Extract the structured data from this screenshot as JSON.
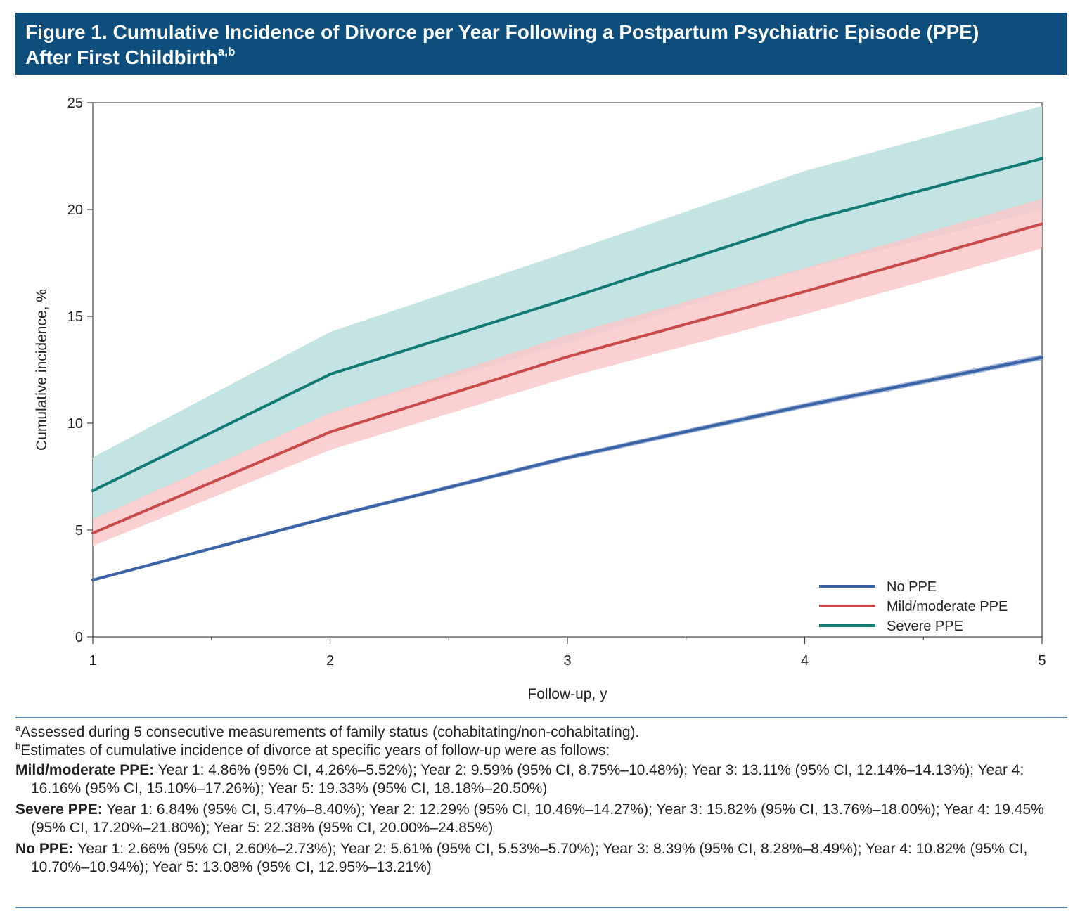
{
  "header": {
    "title_line1": "Figure 1. Cumulative Incidence of Divorce per Year Following a Postpartum Psychiatric Episode (PPE)",
    "title_line2": "After First Childbirth",
    "title_sup": "a,b"
  },
  "chart_data": {
    "type": "line",
    "xlabel": "Follow-up, y",
    "ylabel": "Cumulative incidence, %",
    "x": [
      1,
      2,
      3,
      4,
      5
    ],
    "xlim": [
      1,
      5
    ],
    "ylim": [
      0,
      25
    ],
    "yticks": [
      0,
      5,
      10,
      15,
      20,
      25
    ],
    "xticks": [
      1,
      2,
      3,
      4,
      5
    ],
    "grid": false,
    "legend_position": "bottom-right",
    "series": [
      {
        "name": "No PPE",
        "color": "#3a62a6",
        "band_color": "#9fb4d8",
        "values": [
          2.66,
          5.61,
          8.39,
          10.82,
          13.08
        ],
        "ci_low": [
          2.6,
          5.53,
          8.28,
          10.7,
          12.95
        ],
        "ci_high": [
          2.73,
          5.7,
          8.49,
          10.94,
          13.21
        ]
      },
      {
        "name": "Mild/moderate PPE",
        "color": "#c94a4a",
        "band_color": "#f9c8c8",
        "values": [
          4.86,
          9.59,
          13.11,
          16.16,
          19.33
        ],
        "ci_low": [
          4.26,
          8.75,
          12.14,
          15.1,
          18.18
        ],
        "ci_high": [
          5.52,
          10.48,
          14.13,
          17.26,
          20.5
        ]
      },
      {
        "name": "Severe PPE",
        "color": "#137a73",
        "band_color": "#c3e4e3",
        "values": [
          6.84,
          12.29,
          15.82,
          19.45,
          22.38
        ],
        "ci_low": [
          5.47,
          10.46,
          13.76,
          17.2,
          20.0
        ],
        "ci_high": [
          8.4,
          14.27,
          18.0,
          21.8,
          24.85
        ]
      }
    ]
  },
  "footnotes": {
    "a_mark": "a",
    "a_text": "Assessed during 5 consecutive measurements of family status (cohabitating/non-cohabitating).",
    "b_mark": "b",
    "b_text": "Estimates of cumulative incidence of divorce at specific years of follow-up were as follows:",
    "groups": [
      {
        "label": "Mild/moderate PPE:",
        "text": " Year 1: 4.86% (95% CI, 4.26%–5.52%); Year 2: 9.59% (95% CI, 8.75%–10.48%); Year 3: 13.11% (95% CI, 12.14%–14.13%); Year 4: 16.16% (95% CI, 15.10%–17.26%); Year 5: 19.33% (95% CI, 18.18%–20.50%)"
      },
      {
        "label": "Severe PPE:",
        "text": " Year 1: 6.84% (95% CI, 5.47%–8.40%); Year 2: 12.29% (95% CI, 10.46%–14.27%); Year 3: 15.82% (95% CI, 13.76%–18.00%); Year 4: 19.45% (95% CI, 17.20%–21.80%); Year 5: 22.38% (95% CI, 20.00%–24.85%)"
      },
      {
        "label": "No PPE:",
        "text": " Year 1: 2.66% (95% CI, 2.60%–2.73%); Year 2: 5.61% (95% CI, 5.53%–5.70%); Year 3: 8.39% (95% CI, 8.28%–8.49%); Year 4: 10.82% (95% CI, 10.70%–10.94%); Year 5: 13.08% (95% CI, 12.95%–13.21%)"
      }
    ]
  }
}
